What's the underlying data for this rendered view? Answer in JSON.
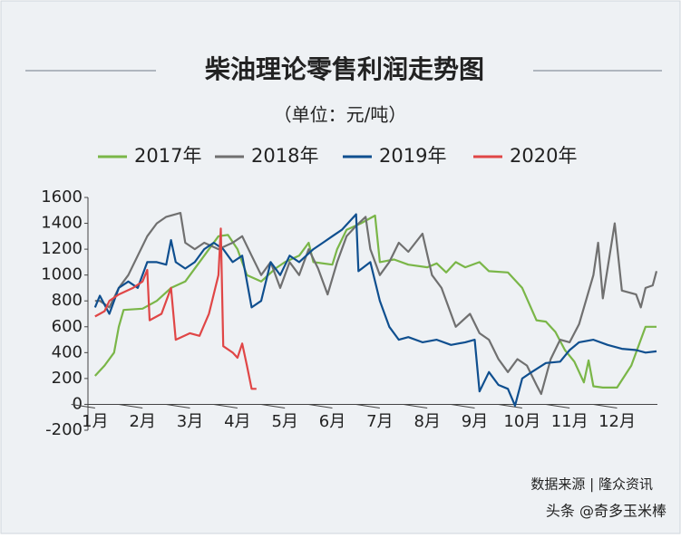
{
  "chart_data": {
    "type": "line",
    "title": "柴油理论零售利润走势图",
    "subtitle": "（单位：元/吨）",
    "source": "数据来源 | 隆众资讯",
    "watermark": "头条 @奇多玉米棒",
    "xlim": [
      0.85,
      12.85
    ],
    "xticks": [
      {
        "value": 1,
        "label": "1月"
      },
      {
        "value": 2,
        "label": "2月"
      },
      {
        "value": 3,
        "label": "3月"
      },
      {
        "value": 4,
        "label": "4月"
      },
      {
        "value": 5,
        "label": "5月"
      },
      {
        "value": 6,
        "label": "6月"
      },
      {
        "value": 7,
        "label": "7月"
      },
      {
        "value": 8,
        "label": "8月"
      },
      {
        "value": 9,
        "label": "9月"
      },
      {
        "value": 10,
        "label": "10月"
      },
      {
        "value": 11,
        "label": "11月"
      },
      {
        "value": 12,
        "label": "12月"
      }
    ],
    "ylim": [
      -200,
      1600
    ],
    "yticks": [
      -200,
      0,
      200,
      400,
      600,
      800,
      1000,
      1200,
      1400,
      1600
    ],
    "series": [
      {
        "name": "2017年",
        "color": "#7ab648",
        "x": [
          1.0,
          1.2,
          1.4,
          1.5,
          1.6,
          2.0,
          2.3,
          2.6,
          2.9,
          3.0,
          3.3,
          3.6,
          3.8,
          4.0,
          4.2,
          4.5,
          4.8,
          5.0,
          5.3,
          5.5,
          5.6,
          6.0,
          6.1,
          6.3,
          6.6,
          6.9,
          7.0,
          7.3,
          7.6,
          8.0,
          8.2,
          8.4,
          8.6,
          8.8,
          9.1,
          9.3,
          9.7,
          10.0,
          10.3,
          10.5,
          10.7,
          10.9,
          11.1,
          11.3,
          11.4,
          11.5,
          11.7,
          12.0,
          12.3,
          12.6,
          12.83
        ],
        "values": [
          220,
          300,
          400,
          600,
          730,
          740,
          800,
          900,
          950,
          1000,
          1150,
          1300,
          1310,
          1200,
          1000,
          950,
          1050,
          1100,
          1150,
          1250,
          1100,
          1080,
          1200,
          1350,
          1400,
          1460,
          1100,
          1120,
          1080,
          1060,
          1090,
          1020,
          1100,
          1060,
          1100,
          1030,
          1020,
          900,
          650,
          640,
          560,
          420,
          330,
          170,
          340,
          140,
          130,
          130,
          300,
          600,
          600
        ]
      },
      {
        "name": "2018年",
        "color": "#707070",
        "x": [
          1.0,
          1.1,
          1.3,
          1.5,
          1.7,
          1.9,
          2.1,
          2.3,
          2.5,
          2.8,
          2.9,
          3.1,
          3.3,
          3.6,
          3.9,
          4.1,
          4.3,
          4.5,
          4.7,
          4.9,
          5.1,
          5.3,
          5.5,
          5.7,
          5.9,
          6.1,
          6.3,
          6.5,
          6.7,
          6.8,
          7.0,
          7.2,
          7.4,
          7.6,
          7.9,
          8.1,
          8.3,
          8.6,
          8.9,
          9.1,
          9.3,
          9.5,
          9.7,
          9.9,
          10.1,
          10.3,
          10.4,
          10.6,
          10.8,
          11.0,
          11.2,
          11.5,
          11.6,
          11.7,
          11.95,
          12.1,
          12.4,
          12.5,
          12.6,
          12.75,
          12.83
        ],
        "values": [
          800,
          800,
          750,
          900,
          1000,
          1150,
          1300,
          1400,
          1450,
          1480,
          1250,
          1200,
          1250,
          1200,
          1250,
          1300,
          1150,
          1000,
          1100,
          900,
          1100,
          1000,
          1200,
          1050,
          850,
          1100,
          1300,
          1380,
          1450,
          1200,
          1000,
          1100,
          1250,
          1180,
          1320,
          1000,
          900,
          600,
          700,
          550,
          500,
          350,
          250,
          350,
          300,
          150,
          80,
          350,
          500,
          480,
          620,
          1000,
          1250,
          820,
          1400,
          880,
          850,
          750,
          900,
          920,
          1030
        ]
      },
      {
        "name": "2019年",
        "color": "#0f4f8f",
        "x": [
          1.0,
          1.1,
          1.3,
          1.5,
          1.7,
          1.9,
          2.1,
          2.3,
          2.5,
          2.6,
          2.7,
          2.9,
          3.1,
          3.3,
          3.5,
          3.7,
          3.9,
          4.1,
          4.3,
          4.5,
          4.7,
          4.9,
          5.1,
          5.3,
          5.6,
          5.8,
          6.0,
          6.2,
          6.5,
          6.55,
          6.8,
          7.0,
          7.2,
          7.4,
          7.6,
          7.9,
          8.2,
          8.5,
          8.8,
          9.0,
          9.1,
          9.3,
          9.5,
          9.7,
          9.85,
          10.0,
          10.2,
          10.5,
          10.8,
          11.0,
          11.2,
          11.5,
          11.8,
          12.1,
          12.4,
          12.6,
          12.83
        ],
        "values": [
          750,
          840,
          700,
          900,
          950,
          900,
          1100,
          1100,
          1080,
          1270,
          1100,
          1050,
          1100,
          1200,
          1250,
          1200,
          1100,
          1150,
          750,
          800,
          1100,
          1000,
          1150,
          1100,
          1200,
          1250,
          1300,
          1350,
          1470,
          1030,
          1100,
          800,
          600,
          500,
          520,
          480,
          500,
          460,
          480,
          500,
          100,
          250,
          150,
          120,
          -10,
          200,
          250,
          320,
          330,
          420,
          480,
          500,
          460,
          430,
          420,
          400,
          410
        ]
      },
      {
        "name": "2020年",
        "color": "#e04646",
        "x": [
          1.0,
          1.1,
          1.2,
          1.3,
          1.5,
          1.8,
          2.0,
          2.1,
          2.15,
          2.4,
          2.6,
          2.7,
          3.0,
          3.2,
          3.4,
          3.6,
          3.65,
          3.7,
          3.9,
          4.0,
          4.1,
          4.2,
          4.3,
          4.4
        ],
        "values": [
          680,
          700,
          720,
          800,
          850,
          900,
          950,
          1040,
          650,
          700,
          900,
          500,
          550,
          530,
          700,
          1000,
          1360,
          450,
          400,
          360,
          470,
          300,
          120,
          120
        ]
      }
    ]
  }
}
